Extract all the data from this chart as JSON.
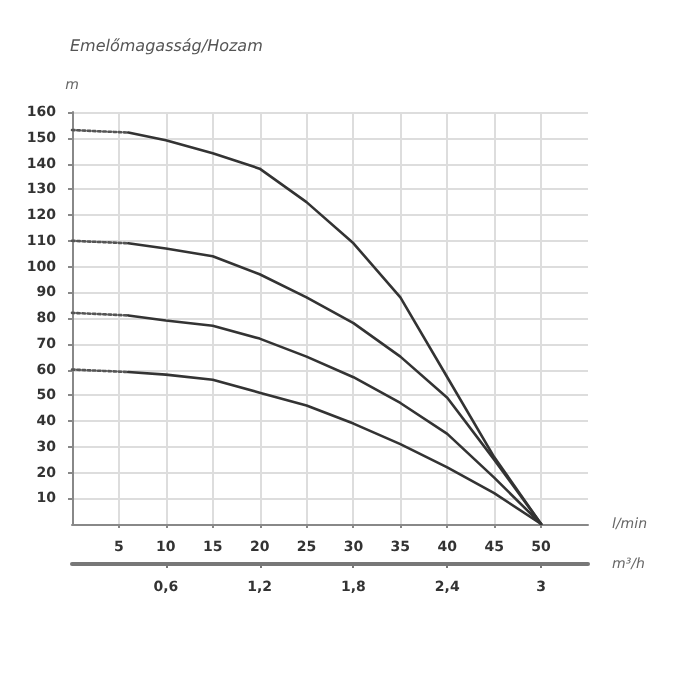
{
  "chart_data": {
    "type": "line",
    "title": "Emelőmagasság/Hozam",
    "ylabel": "m",
    "xlabel": "l/min",
    "x2label": "m³/h",
    "xlim": [
      0,
      55
    ],
    "xticks": [
      5,
      10,
      15,
      20,
      25,
      30,
      35,
      40,
      45,
      50
    ],
    "x2lim": [
      0,
      3.3
    ],
    "x2ticks": [
      {
        "value": 0.6,
        "label": "0,6"
      },
      {
        "value": 1.2,
        "label": "1,2"
      },
      {
        "value": 1.8,
        "label": "1,8"
      },
      {
        "value": 2.4,
        "label": "2,4"
      },
      3
    ],
    "ylim": [
      0,
      160
    ],
    "yticks": [
      10,
      20,
      30,
      40,
      50,
      60,
      70,
      80,
      90,
      100,
      110,
      120,
      130,
      140,
      150,
      160
    ],
    "grid": true,
    "marker": "none",
    "series": [
      {
        "color": "#555555",
        "line_style": "dotted",
        "x": [
          0,
          6
        ],
        "values": [
          153,
          152
        ]
      },
      {
        "color": "#333333",
        "line_style": "solid",
        "x": [
          6,
          10,
          15,
          20,
          25,
          30,
          35,
          40,
          45,
          50
        ],
        "values": [
          152,
          149,
          144,
          138,
          125,
          109,
          88,
          57,
          26,
          0
        ]
      },
      {
        "color": "#555555",
        "line_style": "dotted",
        "x": [
          0,
          6
        ],
        "values": [
          110,
          109
        ]
      },
      {
        "color": "#333333",
        "line_style": "solid",
        "x": [
          6,
          10,
          15,
          20,
          25,
          30,
          35,
          40,
          45,
          50
        ],
        "values": [
          109,
          107,
          104,
          97,
          88,
          78,
          65,
          49,
          25,
          0
        ]
      },
      {
        "color": "#555555",
        "line_style": "dotted",
        "x": [
          0,
          6
        ],
        "values": [
          82,
          81
        ]
      },
      {
        "color": "#333333",
        "line_style": "solid",
        "x": [
          6,
          10,
          15,
          20,
          25,
          30,
          35,
          40,
          45,
          50
        ],
        "values": [
          81,
          79,
          77,
          72,
          65,
          57,
          47,
          35,
          18,
          0
        ]
      },
      {
        "color": "#555555",
        "line_style": "dotted",
        "x": [
          0,
          6
        ],
        "values": [
          60,
          59
        ]
      },
      {
        "color": "#333333",
        "line_style": "solid",
        "x": [
          6,
          10,
          15,
          20,
          25,
          30,
          35,
          40,
          45,
          50
        ],
        "values": [
          59,
          58,
          56,
          51,
          46,
          39,
          31,
          22,
          12,
          0
        ]
      }
    ]
  }
}
